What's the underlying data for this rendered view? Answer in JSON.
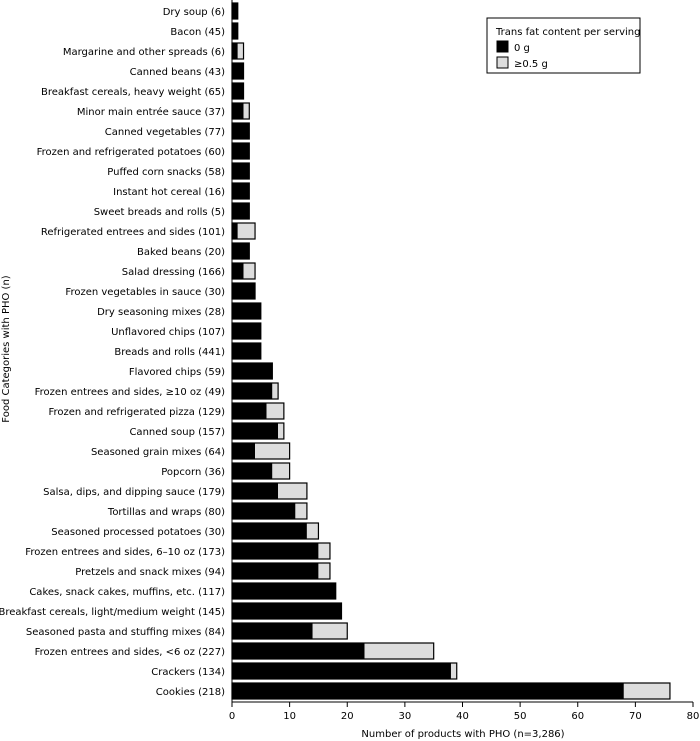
{
  "chart_data": {
    "type": "bar",
    "orientation": "horizontal",
    "stacked": true,
    "title": "",
    "xlabel": "Number of products with PHO (n=3,286)",
    "ylabel": "Food Categories with PHO (n)",
    "xlim": [
      0,
      80
    ],
    "xticks": [
      0,
      10,
      20,
      30,
      40,
      50,
      60,
      70,
      80
    ],
    "grid": false,
    "legend": {
      "title": "Trans fat content per serving",
      "placement": "top-right",
      "entries": [
        "0 g",
        "≥0.5 g"
      ]
    },
    "categories": [
      "Dry soup (6)",
      "Bacon (45)",
      "Margarine and other spreads (6)",
      "Canned beans (43)",
      "Breakfast cereals, heavy weight (65)",
      "Minor main entrée sauce (37)",
      "Canned vegetables (77)",
      "Frozen and refrigerated potatoes (60)",
      "Puffed corn snacks (58)",
      "Instant hot cereal (16)",
      "Sweet breads and rolls (5)",
      "Refrigerated entrees and sides (101)",
      "Baked beans (20)",
      "Salad dressing (166)",
      "Frozen vegetables in sauce (30)",
      "Dry seasoning mixes (28)",
      "Unflavored chips (107)",
      "Breads and rolls (441)",
      "Flavored chips (59)",
      "Frozen entrees and sides, ≥10 oz (49)",
      "Frozen and refrigerated pizza (129)",
      "Canned soup (157)",
      "Seasoned grain mixes (64)",
      "Popcorn (36)",
      "Salsa, dips, and dipping sauce (179)",
      "Tortillas and wraps (80)",
      "Seasoned processed potatoes (30)",
      "Frozen entrees and sides, 6–10 oz (173)",
      "Pretzels and snack mixes (94)",
      "Cakes, snack cakes, muffins, etc. (117)",
      "Breakfast cereals, light/medium weight  (145)",
      "Seasoned pasta and stuffing mixes (84)",
      "Frozen entrees and sides, <6 oz (227)",
      "Crackers (134)",
      "Cookies (218)"
    ],
    "series": [
      {
        "name": "0 g",
        "color": "#000000",
        "values": [
          1,
          1,
          1,
          2,
          2,
          2,
          3,
          3,
          3,
          3,
          3,
          1,
          3,
          2,
          4,
          5,
          5,
          5,
          7,
          7,
          6,
          8,
          4,
          7,
          8,
          11,
          13,
          15,
          15,
          18,
          19,
          14,
          23,
          38,
          68
        ]
      },
      {
        "name": "≥0.5 g",
        "color": "#dddddd",
        "values": [
          0,
          0,
          1,
          0,
          0,
          1,
          0,
          0,
          0,
          0,
          0,
          3,
          0,
          2,
          0,
          0,
          0,
          0,
          0,
          1,
          3,
          1,
          6,
          3,
          5,
          2,
          2,
          2,
          2,
          0,
          0,
          6,
          12,
          1,
          8
        ]
      }
    ]
  }
}
